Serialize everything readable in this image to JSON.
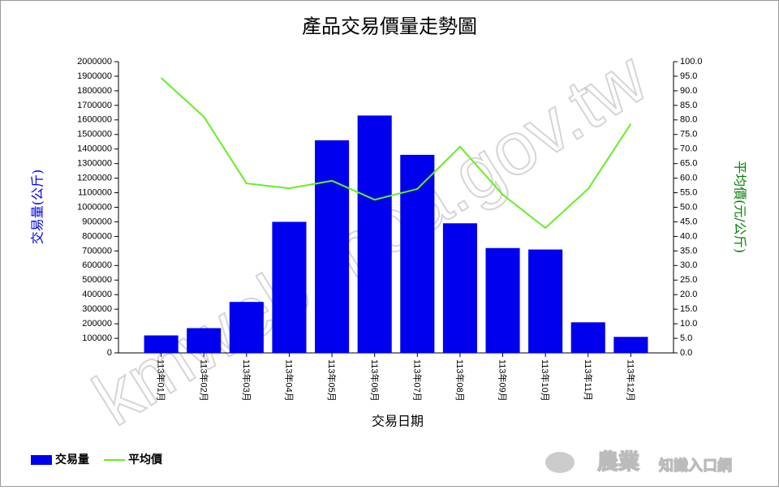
{
  "chart_data": {
    "type": "bar",
    "title": "產品交易價量走勢圖",
    "x_label": "交易日期",
    "y_label": "交易量(公斤)",
    "y2_label": "平均價(元/公斤)",
    "watermark": "kmweb.moa.gov.tw",
    "logo": [
      "農業",
      "知識入口網"
    ],
    "categories": [
      "113年01月",
      "113年02月",
      "113年03月",
      "113年04月",
      "113年05月",
      "113年06月",
      "113年07月",
      "113年08月",
      "113年09月",
      "113年10月",
      "113年11月",
      "113年12月"
    ],
    "series": [
      {
        "name": "交易量",
        "type": "bar",
        "color": "#0000ee",
        "values": [
          120000,
          170000,
          350000,
          900000,
          1460000,
          1630000,
          1360000,
          890000,
          720000,
          710000,
          210000,
          110000
        ]
      },
      {
        "name": "平均價",
        "type": "line",
        "axis": "y2",
        "color": "#66ee22",
        "values": [
          94.4,
          81.1,
          58.2,
          56.5,
          59.1,
          52.6,
          56.3,
          70.8,
          54.3,
          42.9,
          56.3,
          78.6
        ]
      }
    ],
    "ylim": [
      0,
      2000000
    ],
    "yticks": [
      0,
      100000,
      200000,
      300000,
      400000,
      500000,
      600000,
      700000,
      800000,
      900000,
      1000000,
      1100000,
      1200000,
      1300000,
      1400000,
      1500000,
      1600000,
      1700000,
      1800000,
      1900000,
      2000000
    ],
    "y2lim": [
      0,
      100
    ],
    "y2ticks": [
      {
        "value": 0,
        "label": "0.0"
      },
      {
        "value": 5,
        "label": "5.0"
      },
      {
        "value": 10,
        "label": "10.0"
      },
      {
        "value": 15,
        "label": "15.0"
      },
      {
        "value": 20,
        "label": "20.0"
      },
      {
        "value": 25,
        "label": "25.0"
      },
      {
        "value": 30,
        "label": "30.0"
      },
      {
        "value": 35,
        "label": "35.0"
      },
      {
        "value": 40,
        "label": "40.0"
      },
      {
        "value": 45,
        "label": "45.0"
      },
      {
        "value": 50,
        "label": "50.0"
      },
      {
        "value": 55,
        "label": "55.0"
      },
      {
        "value": 60,
        "label": "60.0"
      },
      {
        "value": 65,
        "label": "65.0"
      },
      {
        "value": 70,
        "label": "70.0"
      },
      {
        "value": 75,
        "label": "75.0"
      },
      {
        "value": 80,
        "label": "80.0"
      },
      {
        "value": 85,
        "label": "85.0"
      },
      {
        "value": 90,
        "label": "90.0"
      },
      {
        "value": 95,
        "label": "95.0"
      },
      {
        "value": 100,
        "label": "100.0"
      }
    ],
    "legend": "bottom-left"
  }
}
